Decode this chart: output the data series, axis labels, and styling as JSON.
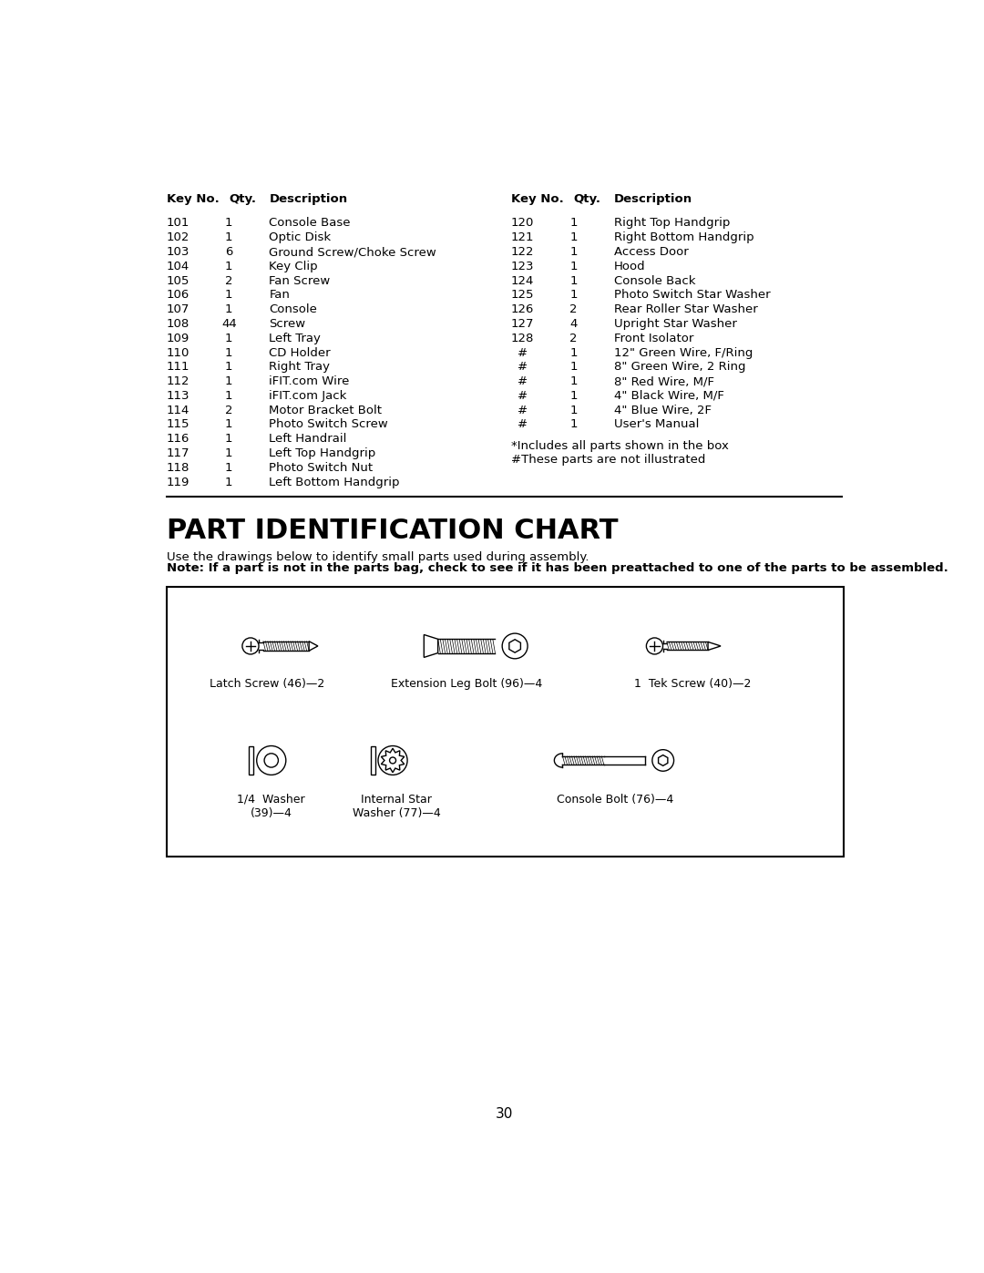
{
  "bg_color": "#ffffff",
  "text_color": "#000000",
  "page_number": "30",
  "left_table": [
    [
      "101",
      "1",
      "Console Base"
    ],
    [
      "102",
      "1",
      "Optic Disk"
    ],
    [
      "103",
      "6",
      "Ground Screw/Choke Screw"
    ],
    [
      "104",
      "1",
      "Key Clip"
    ],
    [
      "105",
      "2",
      "Fan Screw"
    ],
    [
      "106",
      "1",
      "Fan"
    ],
    [
      "107",
      "1",
      "Console"
    ],
    [
      "108",
      "44",
      "Screw"
    ],
    [
      "109",
      "1",
      "Left Tray"
    ],
    [
      "110",
      "1",
      "CD Holder"
    ],
    [
      "111",
      "1",
      "Right Tray"
    ],
    [
      "112",
      "1",
      "iFIT.com Wire"
    ],
    [
      "113",
      "1",
      "iFIT.com Jack"
    ],
    [
      "114",
      "2",
      "Motor Bracket Bolt"
    ],
    [
      "115",
      "1",
      "Photo Switch Screw"
    ],
    [
      "116",
      "1",
      "Left Handrail"
    ],
    [
      "117",
      "1",
      "Left Top Handgrip"
    ],
    [
      "118",
      "1",
      "Photo Switch Nut"
    ],
    [
      "119",
      "1",
      "Left Bottom Handgrip"
    ]
  ],
  "right_table": [
    [
      "120",
      "1",
      "Right Top Handgrip"
    ],
    [
      "121",
      "1",
      "Right Bottom Handgrip"
    ],
    [
      "122",
      "1",
      "Access Door"
    ],
    [
      "123",
      "1",
      "Hood"
    ],
    [
      "124",
      "1",
      "Console Back"
    ],
    [
      "125",
      "1",
      "Photo Switch Star Washer"
    ],
    [
      "126",
      "2",
      "Rear Roller Star Washer"
    ],
    [
      "127",
      "4",
      "Upright Star Washer"
    ],
    [
      "128",
      "2",
      "Front Isolator"
    ],
    [
      "#",
      "1",
      "12\" Green Wire, F/Ring"
    ],
    [
      "#",
      "1",
      "8\" Green Wire, 2 Ring"
    ],
    [
      "#",
      "1",
      "8\" Red Wire, M/F"
    ],
    [
      "#",
      "1",
      "4\" Black Wire, M/F"
    ],
    [
      "#",
      "1",
      "4\" Blue Wire, 2F"
    ],
    [
      "#",
      "1",
      "User's Manual"
    ]
  ],
  "footnote1": "*Includes all parts shown in the box",
  "footnote2": "#These parts are not illustrated",
  "section_title": "PART IDENTIFICATION CHART",
  "section_desc_normal": "Use the drawings below to identify small parts used during assembly. ",
  "section_desc_bold": "Note: If a part is not in the parts bag, check to see if it has been preattached to one of the parts to be assembled."
}
